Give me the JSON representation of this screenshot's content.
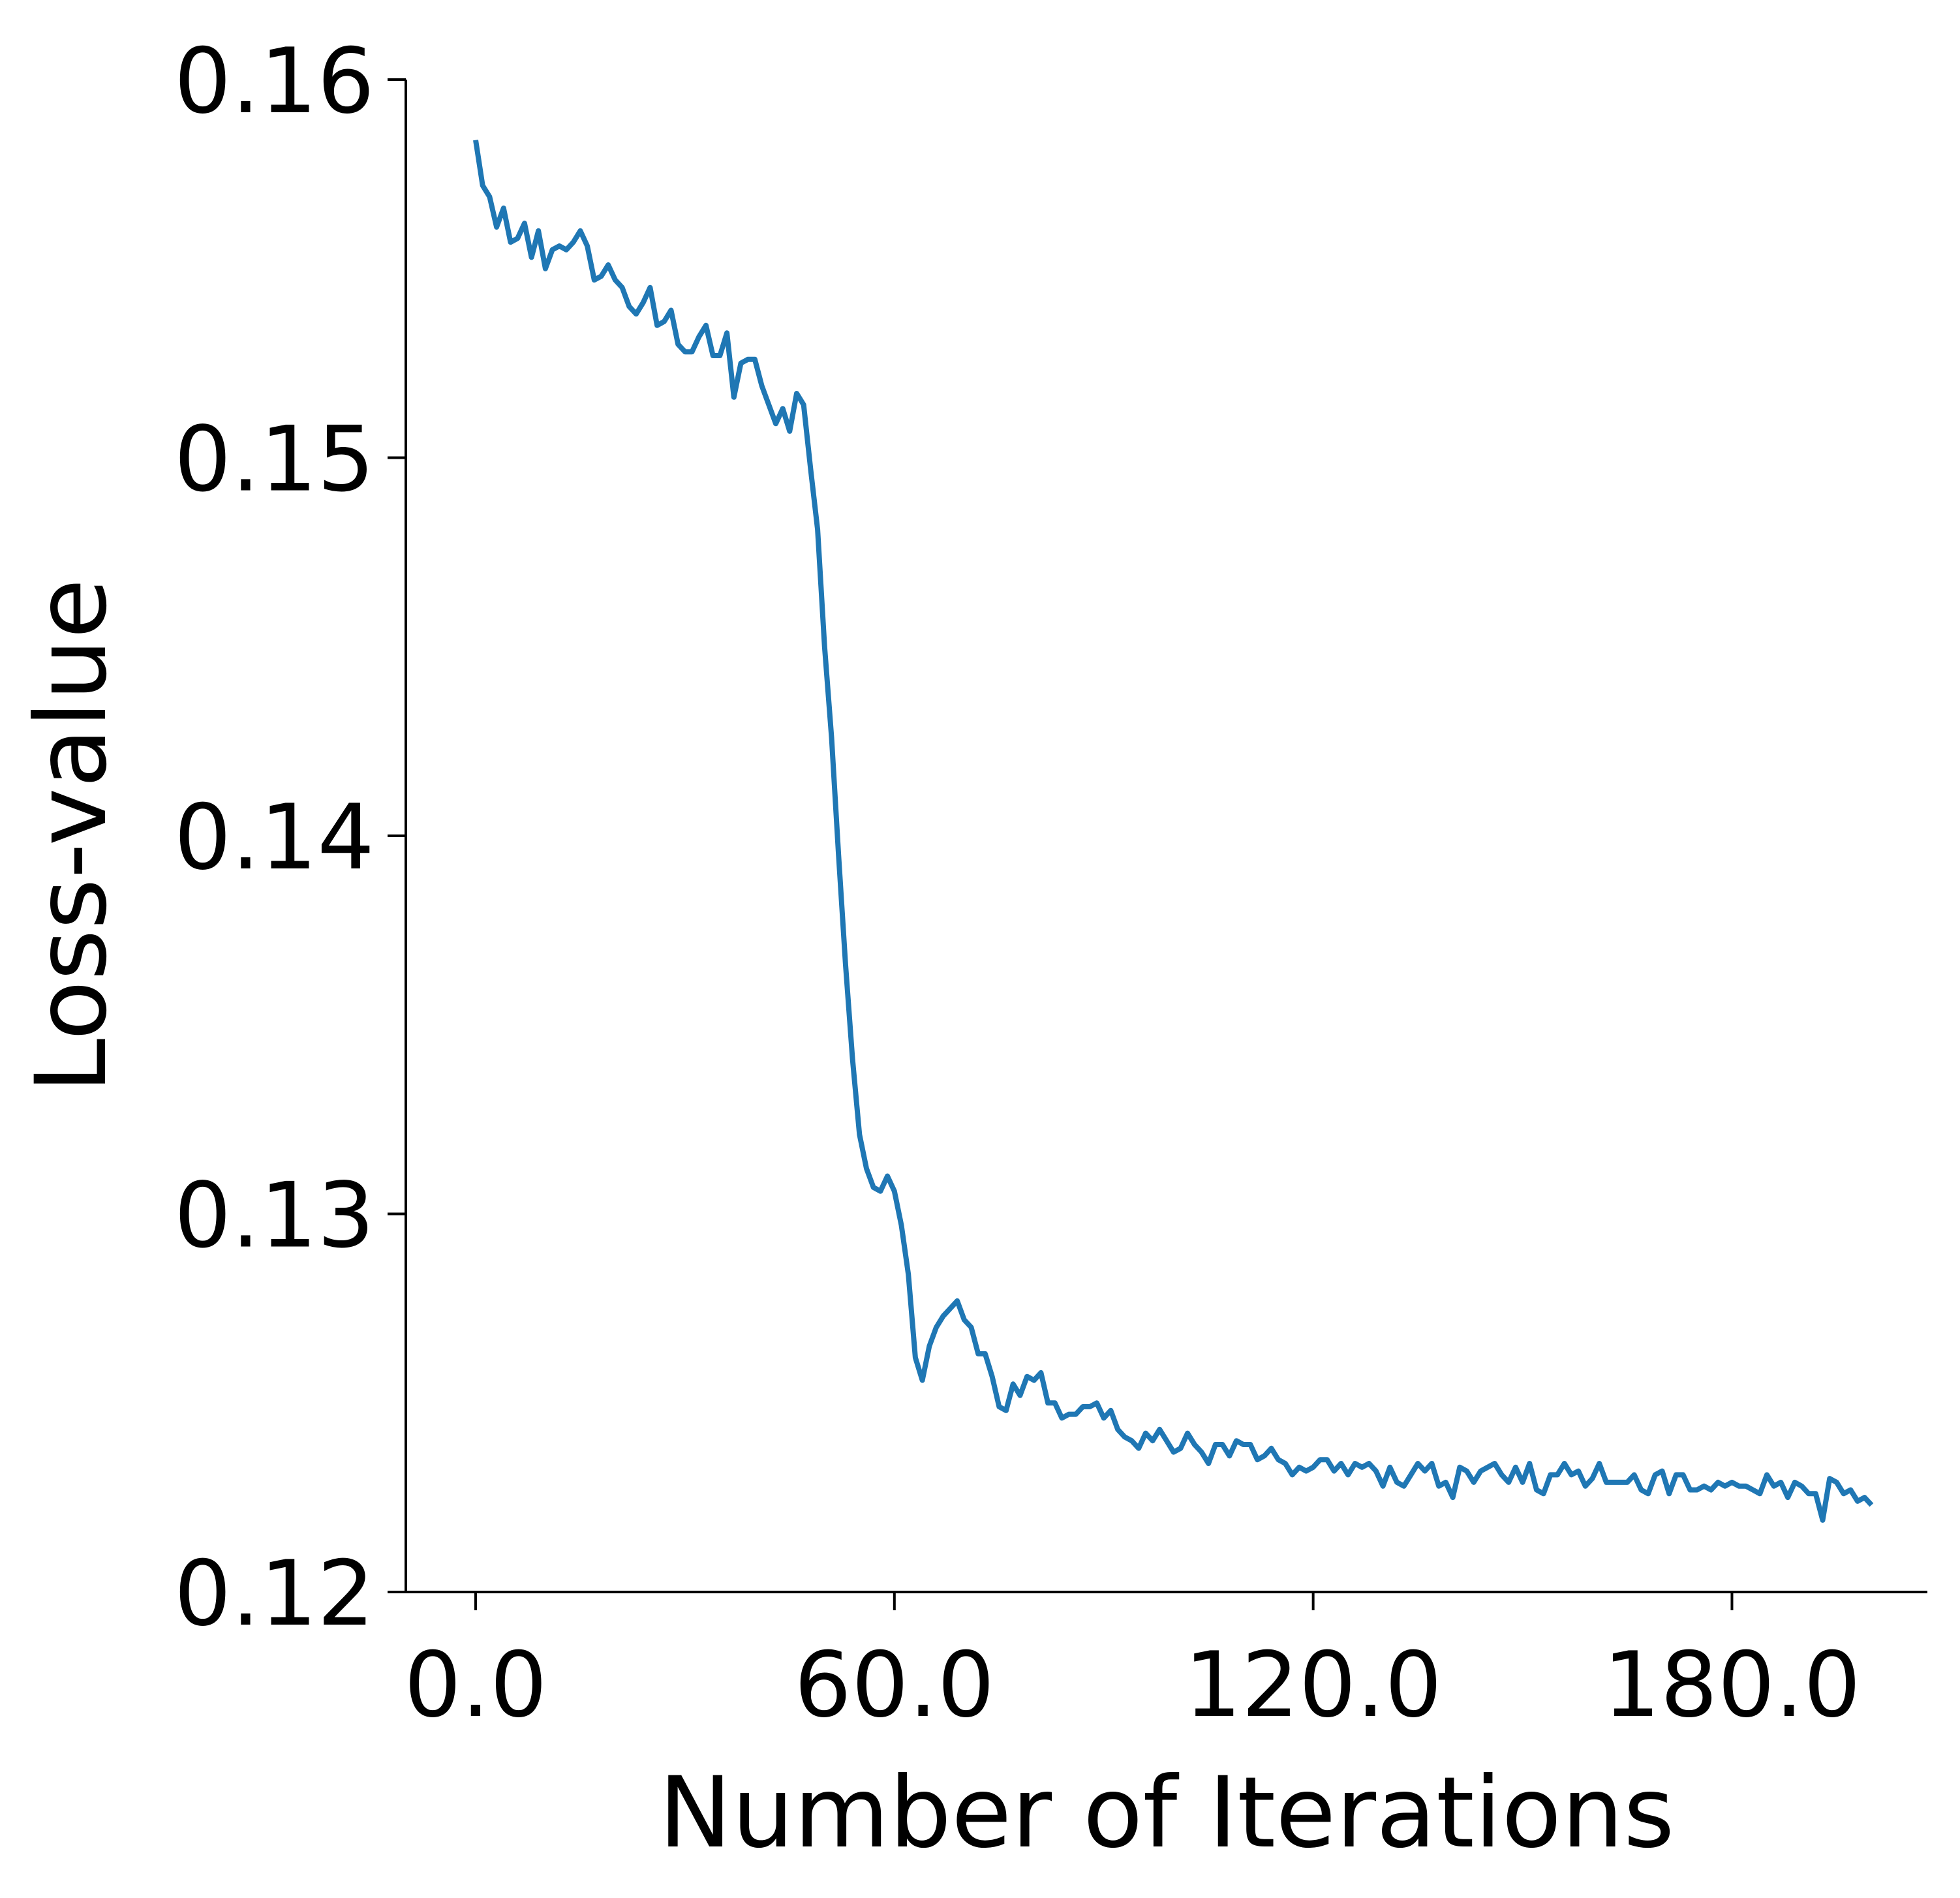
{
  "chart_data": {
    "type": "line",
    "title": "",
    "xlabel": "Number of Iterations",
    "ylabel": "Loss-value",
    "xlim": [
      -10,
      208
    ],
    "ylim": [
      0.12,
      0.16
    ],
    "x_ticks": [
      0,
      60,
      120,
      180
    ],
    "x_tick_labels": [
      "0.0",
      "60.0",
      "120.0",
      "180.0"
    ],
    "y_ticks": [
      0.12,
      0.13,
      0.14,
      0.15,
      0.16
    ],
    "y_tick_labels": [
      "0.12",
      "0.13",
      "0.14",
      "0.15",
      "0.16"
    ],
    "grid": false,
    "legend": "none",
    "series": [
      {
        "color": "#1f77b4",
        "x_start": 0,
        "x_step": 1,
        "values": [
          0.1584,
          0.1572,
          0.1569,
          0.1561,
          0.1566,
          0.1557,
          0.1558,
          0.1562,
          0.1553,
          0.156,
          0.155,
          0.1555,
          0.1556,
          0.1555,
          0.1557,
          0.156,
          0.1556,
          0.1547,
          0.1548,
          0.1551,
          0.1547,
          0.1545,
          0.154,
          0.1538,
          0.1541,
          0.1545,
          0.1535,
          0.1536,
          0.1539,
          0.153,
          0.1528,
          0.1528,
          0.1532,
          0.1535,
          0.1527,
          0.1527,
          0.1533,
          0.1516,
          0.1525,
          0.1526,
          0.1526,
          0.1519,
          0.1514,
          0.1509,
          0.1513,
          0.1507,
          0.1517,
          0.1514,
          0.1497,
          0.1481,
          0.145,
          0.1426,
          0.1395,
          0.1366,
          0.1341,
          0.1321,
          0.1312,
          0.1307,
          0.1306,
          0.131,
          0.1306,
          0.1297,
          0.1284,
          0.1262,
          0.1256,
          0.1265,
          0.127,
          0.1273,
          0.1275,
          0.1277,
          0.1272,
          0.127,
          0.1263,
          0.1263,
          0.1257,
          0.1249,
          0.1248,
          0.1255,
          0.1252,
          0.1257,
          0.1256,
          0.1258,
          0.125,
          0.125,
          0.1246,
          0.1247,
          0.1247,
          0.1249,
          0.1249,
          0.125,
          0.1246,
          0.1248,
          0.1243,
          0.1241,
          0.124,
          0.1238,
          0.1242,
          0.124,
          0.1243,
          0.124,
          0.1237,
          0.1238,
          0.1242,
          0.1239,
          0.1237,
          0.1234,
          0.1239,
          0.1239,
          0.1236,
          0.124,
          0.1239,
          0.1239,
          0.1235,
          0.1236,
          0.1238,
          0.1235,
          0.1234,
          0.1231,
          0.1233,
          0.1232,
          0.1233,
          0.1235,
          0.1235,
          0.1232,
          0.1234,
          0.1231,
          0.1234,
          0.1233,
          0.1234,
          0.1232,
          0.1228,
          0.1233,
          0.1229,
          0.1228,
          0.1231,
          0.1234,
          0.1232,
          0.1234,
          0.1228,
          0.1229,
          0.1225,
          0.1233,
          0.1232,
          0.1229,
          0.1232,
          0.1233,
          0.1234,
          0.1231,
          0.1229,
          0.1233,
          0.1229,
          0.1234,
          0.1227,
          0.1226,
          0.1231,
          0.1231,
          0.1234,
          0.1231,
          0.1232,
          0.1228,
          0.123,
          0.1234,
          0.1229,
          0.1229,
          0.1229,
          0.1229,
          0.1231,
          0.1227,
          0.1226,
          0.1231,
          0.1232,
          0.1226,
          0.1231,
          0.1231,
          0.1227,
          0.1227,
          0.1228,
          0.1227,
          0.1229,
          0.1228,
          0.1229,
          0.1228,
          0.1228,
          0.1227,
          0.1226,
          0.1231,
          0.1228,
          0.1229,
          0.1225,
          0.1229,
          0.1228,
          0.1226,
          0.1226,
          0.1219,
          0.123,
          0.1229,
          0.1226,
          0.1227,
          0.1224,
          0.1225,
          0.1223
        ]
      }
    ]
  }
}
